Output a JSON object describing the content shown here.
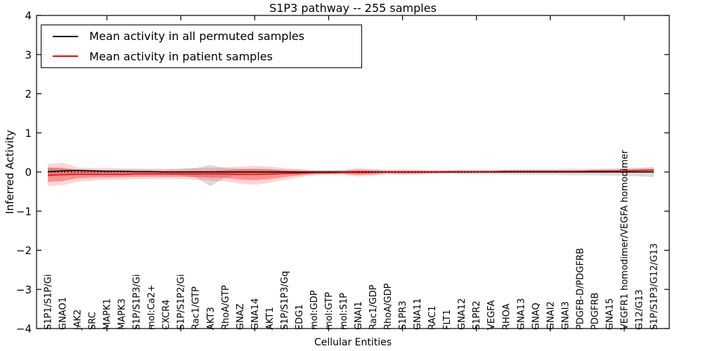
{
  "title": "S1P3 pathway -- 255 samples",
  "chart_data": {
    "type": "line",
    "title": "S1P3 pathway -- 255 samples",
    "xlabel": "Cellular Entities",
    "ylabel": "Inferred Activity",
    "ylim": [
      -4,
      4
    ],
    "yticks": [
      4,
      3,
      2,
      1,
      0,
      -1,
      -2,
      -3,
      -4
    ],
    "x_major_tick_every": 5,
    "grid": false,
    "legend_position": "upper left",
    "categories": [
      "S1P1/S1P/Gi",
      "GNAO1",
      "JAK2",
      "SRC",
      "MAPK1",
      "MAPK3",
      "S1P/S1P3/Gi",
      "mol:Ca2+",
      "CXCR4",
      "S1P/S1P2/Gi",
      "Rac1/GTP",
      "AKT3",
      "RhoA/GTP",
      "GNAZ",
      "GNA14",
      "AKT1",
      "S1P/S1P3/Gq",
      "EDG1",
      "mol:GDP",
      "mol:GTP",
      "mol:S1P",
      "GNAI1",
      "Rac1/GDP",
      "RhoA/GDP",
      "S1PR3",
      "GNA11",
      "RAC1",
      "FLT1",
      "GNA12",
      "S1PR2",
      "VEGFA",
      "RHOA",
      "GNA13",
      "GNAQ",
      "GNAI2",
      "GNAI3",
      "PDGFB-D/PDGFRB",
      "PDGFRB",
      "GNA15",
      "VEGFR1 homodimer/VEGFA homodimer",
      "G12/G13",
      "S1P/S1P3/G12/G13"
    ],
    "series": [
      {
        "name": "Mean activity in all permuted samples",
        "color": "#000000",
        "style": "solid",
        "values": [
          0.01,
          0.03,
          0.04,
          0.03,
          0.02,
          0.02,
          0.01,
          0.01,
          0.0,
          0.0,
          0.0,
          0.0,
          0.0,
          0.0,
          0.0,
          0.0,
          0.0,
          0.0,
          0.0,
          0.0,
          0.0,
          0.0,
          0.0,
          0.0,
          0.0,
          0.0,
          0.0,
          0.0,
          0.0,
          0.0,
          0.0,
          0.0,
          0.0,
          0.0,
          0.0,
          0.0,
          0.0,
          0.0,
          0.0,
          0.0,
          0.0,
          0.0
        ]
      },
      {
        "name": "Mean activity in patient samples",
        "color": "#ff0000",
        "style": "solid",
        "values": [
          -0.08,
          -0.07,
          -0.06,
          -0.06,
          -0.06,
          -0.06,
          -0.05,
          -0.05,
          -0.05,
          -0.05,
          -0.05,
          -0.05,
          -0.05,
          -0.06,
          -0.06,
          -0.05,
          -0.04,
          -0.03,
          -0.02,
          -0.02,
          -0.01,
          -0.01,
          -0.01,
          0.0,
          0.0,
          0.0,
          0.0,
          0.01,
          0.01,
          0.01,
          0.01,
          0.02,
          0.02,
          0.02,
          0.02,
          0.02,
          0.02,
          0.03,
          0.03,
          0.03,
          0.04,
          0.05
        ]
      }
    ],
    "bands": [
      {
        "name": "permuted-samples-std",
        "color": "#999999",
        "opacity": 0.35,
        "upper": [
          0.13,
          0.09,
          0.07,
          0.06,
          0.06,
          0.06,
          0.06,
          0.06,
          0.06,
          0.08,
          0.1,
          0.18,
          0.1,
          0.08,
          0.07,
          0.07,
          0.06,
          0.06,
          0.05,
          0.05,
          0.05,
          0.06,
          0.06,
          0.06,
          0.06,
          0.05,
          0.05,
          0.05,
          0.06,
          0.06,
          0.06,
          0.06,
          0.07,
          0.07,
          0.07,
          0.08,
          0.08,
          0.08,
          0.09,
          0.1,
          0.11,
          0.13
        ],
        "lower": [
          -0.12,
          -0.08,
          -0.06,
          -0.06,
          -0.06,
          -0.06,
          -0.06,
          -0.06,
          -0.06,
          -0.08,
          -0.14,
          -0.36,
          -0.14,
          -0.08,
          -0.07,
          -0.07,
          -0.06,
          -0.06,
          -0.05,
          -0.05,
          -0.05,
          -0.06,
          -0.06,
          -0.06,
          -0.06,
          -0.05,
          -0.05,
          -0.05,
          -0.06,
          -0.06,
          -0.06,
          -0.06,
          -0.07,
          -0.07,
          -0.07,
          -0.08,
          -0.08,
          -0.08,
          -0.09,
          -0.1,
          -0.11,
          -0.13
        ]
      },
      {
        "name": "patient-samples-std-outer",
        "color": "#ff0000",
        "opacity": 0.16,
        "upper": [
          0.2,
          0.24,
          0.12,
          0.1,
          0.1,
          0.09,
          0.09,
          0.08,
          0.08,
          0.08,
          0.1,
          0.1,
          0.12,
          0.14,
          0.16,
          0.14,
          0.1,
          0.07,
          0.04,
          0.04,
          0.05,
          0.1,
          0.07,
          0.04,
          0.05,
          0.05,
          0.04,
          0.03,
          0.03,
          0.03,
          0.03,
          0.04,
          0.04,
          0.04,
          0.04,
          0.04,
          0.05,
          0.05,
          0.05,
          0.07,
          0.09,
          0.09
        ],
        "lower": [
          -0.36,
          -0.34,
          -0.25,
          -0.22,
          -0.2,
          -0.2,
          -0.18,
          -0.18,
          -0.17,
          -0.18,
          -0.2,
          -0.22,
          -0.24,
          -0.3,
          -0.33,
          -0.28,
          -0.2,
          -0.14,
          -0.08,
          -0.07,
          -0.07,
          -0.12,
          -0.09,
          -0.05,
          -0.07,
          -0.07,
          -0.05,
          -0.03,
          -0.03,
          -0.02,
          -0.02,
          -0.01,
          -0.01,
          0.0,
          0.0,
          0.0,
          -0.01,
          0.0,
          0.01,
          -0.01,
          -0.01,
          0.0
        ]
      },
      {
        "name": "patient-samples-std-inner",
        "color": "#ff0000",
        "opacity": 0.32,
        "upper": [
          0.1,
          0.1,
          0.05,
          0.03,
          0.03,
          0.02,
          0.02,
          0.02,
          0.02,
          0.02,
          0.03,
          0.03,
          0.05,
          0.07,
          0.08,
          0.07,
          0.04,
          0.02,
          0.0,
          0.0,
          0.01,
          0.05,
          0.03,
          0.01,
          0.02,
          0.02,
          0.01,
          0.02,
          0.02,
          0.02,
          0.02,
          0.03,
          0.03,
          0.03,
          0.03,
          0.03,
          0.03,
          0.04,
          0.04,
          0.05,
          0.06,
          0.07
        ],
        "lower": [
          -0.25,
          -0.23,
          -0.16,
          -0.14,
          -0.14,
          -0.13,
          -0.12,
          -0.12,
          -0.12,
          -0.12,
          -0.13,
          -0.14,
          -0.15,
          -0.19,
          -0.21,
          -0.18,
          -0.13,
          -0.09,
          -0.05,
          -0.04,
          -0.04,
          -0.07,
          -0.05,
          -0.02,
          -0.03,
          -0.03,
          -0.02,
          -0.01,
          0.0,
          0.0,
          0.0,
          0.01,
          0.01,
          0.01,
          0.01,
          0.01,
          0.01,
          0.02,
          0.02,
          0.01,
          0.02,
          0.03
        ]
      }
    ],
    "zero_reference_line": {
      "y": 0,
      "style": "dotted",
      "color": "#000000"
    }
  }
}
